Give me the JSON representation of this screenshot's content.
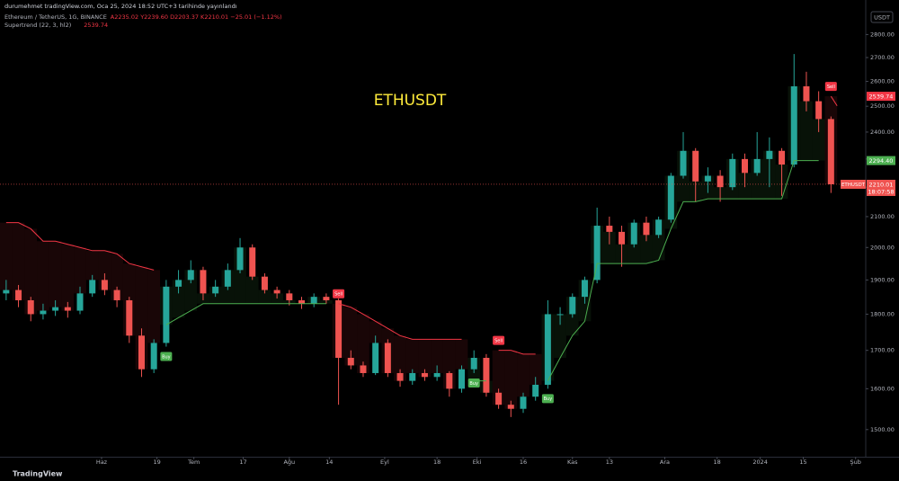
{
  "header": {
    "published": "durumehmet tradingView.com, Oca 25, 2024 18:52 UTC+3 tarihinde yayınlandı",
    "symbol": "Ethereum / TetherUS, 1G, BINANCE",
    "ohlc": "A2235.02 Y2239.60 D2203.37 K2210.01 −25.01 (−1.12%)",
    "indicator": "Supertrend (22, 3, hl2)",
    "currency": "USDT",
    "brand": "TradingView"
  },
  "chart_data": {
    "type": "candlestick",
    "title": "ETHUSDT",
    "log_scale": true,
    "grid": false,
    "up_color": "#26a69a",
    "down_color": "#ef5350",
    "trend_up_color": "#4caf50",
    "trend_down_color": "#f23645",
    "title_color": "#ffeb3b",
    "xlim": [
      -2,
      279
    ],
    "xticks": [
      {
        "value": 31,
        "label": "Haz"
      },
      {
        "value": 49,
        "label": "19"
      },
      {
        "value": 61,
        "label": "Tem"
      },
      {
        "value": 77,
        "label": "17"
      },
      {
        "value": 92,
        "label": "Ağu"
      },
      {
        "value": 105,
        "label": "14"
      },
      {
        "value": 123,
        "label": "Eyl"
      },
      {
        "value": 140,
        "label": "18"
      },
      {
        "value": 153,
        "label": "Eki"
      },
      {
        "value": 168,
        "label": "16"
      },
      {
        "value": 184,
        "label": "Kas"
      },
      {
        "value": 196,
        "label": "13"
      },
      {
        "value": 214,
        "label": "Ara"
      },
      {
        "value": 231,
        "label": "18"
      },
      {
        "value": 245,
        "label": "2024"
      },
      {
        "value": 259,
        "label": "15"
      },
      {
        "value": 276,
        "label": "Şub"
      }
    ],
    "ylim": [
      1437,
      2907
    ],
    "yticks": [
      {
        "value": 1500,
        "label": "1500.00"
      },
      {
        "value": 1600,
        "label": "1600.00"
      },
      {
        "value": 1700,
        "label": "1700.00"
      },
      {
        "value": 1800,
        "label": "1800.00"
      },
      {
        "value": 1900,
        "label": "1900.00"
      },
      {
        "value": 2000,
        "label": "2000.00"
      },
      {
        "value": 2100,
        "label": "2100.00"
      },
      {
        "value": 2200,
        "label": "2200.00"
      },
      {
        "value": 2300,
        "label": "2300.00"
      },
      {
        "value": 2400,
        "label": "2400.00"
      },
      {
        "value": 2500,
        "label": "2500.00"
      },
      {
        "value": 2600,
        "label": "2600.00"
      },
      {
        "value": 2700,
        "label": "2700.00"
      },
      {
        "value": 2800,
        "label": "2800.00"
      }
    ],
    "x": [
      0,
      4,
      8,
      12,
      16,
      20,
      24,
      28,
      32,
      36,
      40,
      44,
      48,
      52,
      56,
      60,
      64,
      68,
      72,
      76,
      80,
      84,
      88,
      92,
      96,
      100,
      104,
      108,
      112,
      116,
      120,
      124,
      128,
      132,
      136,
      140,
      144,
      148,
      152,
      156,
      160,
      164,
      168,
      172,
      176,
      180,
      184,
      188,
      192,
      196,
      200,
      204,
      208,
      212,
      216,
      220,
      224,
      228,
      232,
      236,
      240,
      244,
      248,
      252,
      256,
      260,
      264,
      268
    ],
    "open": [
      1860,
      1870,
      1840,
      1800,
      1810,
      1820,
      1810,
      1860,
      1900,
      1870,
      1840,
      1740,
      1650,
      1720,
      1880,
      1900,
      1930,
      1860,
      1880,
      1930,
      2000,
      1910,
      1870,
      1860,
      1840,
      1830,
      1850,
      1840,
      1680,
      1660,
      1640,
      1720,
      1640,
      1620,
      1640,
      1630,
      1640,
      1600,
      1650,
      1680,
      1590,
      1560,
      1550,
      1580,
      1610,
      1800,
      1800,
      1850,
      1900,
      2070,
      2050,
      2010,
      2080,
      2040,
      2090,
      2240,
      2330,
      2220,
      2240,
      2200,
      2300,
      2250,
      2300,
      2330,
      2280,
      2580,
      2520,
      2450
    ],
    "high": [
      1900,
      1885,
      1850,
      1830,
      1840,
      1835,
      1880,
      1915,
      1920,
      1880,
      1850,
      1760,
      1730,
      1900,
      1930,
      1960,
      1940,
      1900,
      1950,
      2030,
      2010,
      1920,
      1880,
      1870,
      1850,
      1860,
      1860,
      1845,
      1700,
      1670,
      1740,
      1730,
      1650,
      1650,
      1650,
      1660,
      1645,
      1660,
      1700,
      1690,
      1600,
      1570,
      1590,
      1630,
      1840,
      1820,
      1860,
      1910,
      2130,
      2100,
      2070,
      2090,
      2100,
      2100,
      2250,
      2400,
      2340,
      2270,
      2260,
      2320,
      2320,
      2400,
      2380,
      2340,
      2715,
      2640,
      2560,
      2460
    ],
    "low": [
      1840,
      1820,
      1780,
      1785,
      1795,
      1790,
      1800,
      1850,
      1855,
      1820,
      1720,
      1630,
      1640,
      1710,
      1860,
      1890,
      1840,
      1850,
      1870,
      1920,
      1900,
      1860,
      1845,
      1825,
      1815,
      1820,
      1830,
      1560,
      1650,
      1630,
      1635,
      1630,
      1605,
      1610,
      1620,
      1620,
      1580,
      1590,
      1640,
      1580,
      1550,
      1530,
      1540,
      1570,
      1600,
      1770,
      1790,
      1830,
      1890,
      2010,
      1940,
      2000,
      2020,
      2030,
      2080,
      2230,
      2150,
      2180,
      2150,
      2190,
      2200,
      2240,
      2200,
      2170,
      2270,
      2480,
      2400,
      2180
    ],
    "close": [
      1870,
      1840,
      1800,
      1810,
      1820,
      1810,
      1860,
      1900,
      1870,
      1840,
      1740,
      1650,
      1720,
      1880,
      1900,
      1930,
      1860,
      1880,
      1930,
      2000,
      1910,
      1870,
      1860,
      1840,
      1830,
      1850,
      1840,
      1680,
      1660,
      1640,
      1720,
      1640,
      1620,
      1640,
      1630,
      1640,
      1600,
      1650,
      1680,
      1590,
      1560,
      1550,
      1580,
      1610,
      1800,
      1800,
      1850,
      1900,
      2070,
      2050,
      2010,
      2080,
      2040,
      2090,
      2240,
      2330,
      2220,
      2240,
      2200,
      2300,
      2250,
      2300,
      2330,
      2280,
      2580,
      2520,
      2450,
      2210.01
    ],
    "supertrend_up": [
      null,
      null,
      null,
      null,
      null,
      null,
      null,
      null,
      null,
      null,
      null,
      null,
      null,
      1770,
      1790,
      1810,
      1830,
      1830,
      1830,
      1830,
      1830,
      1830,
      1830,
      1830,
      1830,
      1830,
      1830,
      null,
      null,
      null,
      null,
      null,
      null,
      null,
      null,
      null,
      null,
      null,
      1620,
      1620,
      null,
      null,
      null,
      null,
      1620,
      1680,
      1740,
      1780,
      1950,
      1950,
      1950,
      1950,
      1950,
      1960,
      2060,
      2150,
      2150,
      2160,
      2160,
      2160,
      2160,
      2160,
      2160,
      2160,
      2294.4,
      2294.4,
      2294.4,
      null
    ],
    "supertrend_down": [
      2080,
      2080,
      2060,
      2020,
      2020,
      2010,
      2000,
      1990,
      1990,
      1980,
      1950,
      1940,
      1930,
      null,
      null,
      null,
      null,
      null,
      null,
      null,
      null,
      null,
      null,
      null,
      null,
      null,
      null,
      1830,
      1820,
      1800,
      1780,
      1760,
      1740,
      1730,
      1730,
      1730,
      1730,
      1730,
      null,
      null,
      1700,
      1700,
      1690,
      1690,
      null,
      null,
      null,
      null,
      null,
      null,
      null,
      null,
      null,
      null,
      null,
      null,
      null,
      null,
      null,
      null,
      null,
      null,
      null,
      null,
      null,
      null,
      null,
      2539.74
    ],
    "signals": [
      {
        "x": 52,
        "label": "Buy",
        "side": "up"
      },
      {
        "x": 108,
        "label": "Sell",
        "side": "down"
      },
      {
        "x": 152,
        "label": "Buy",
        "side": "up"
      },
      {
        "x": 160,
        "label": "Sell",
        "side": "down"
      },
      {
        "x": 176,
        "label": "Buy",
        "side": "up"
      },
      {
        "x": 268,
        "label": "Sell",
        "side": "down"
      }
    ],
    "supertrend_value": 2539.74,
    "supertrend_up_value": {
      "value": 2294.4,
      "label": "2294.40"
    },
    "last_price": 2210.01,
    "countdown": "18:07:58"
  }
}
